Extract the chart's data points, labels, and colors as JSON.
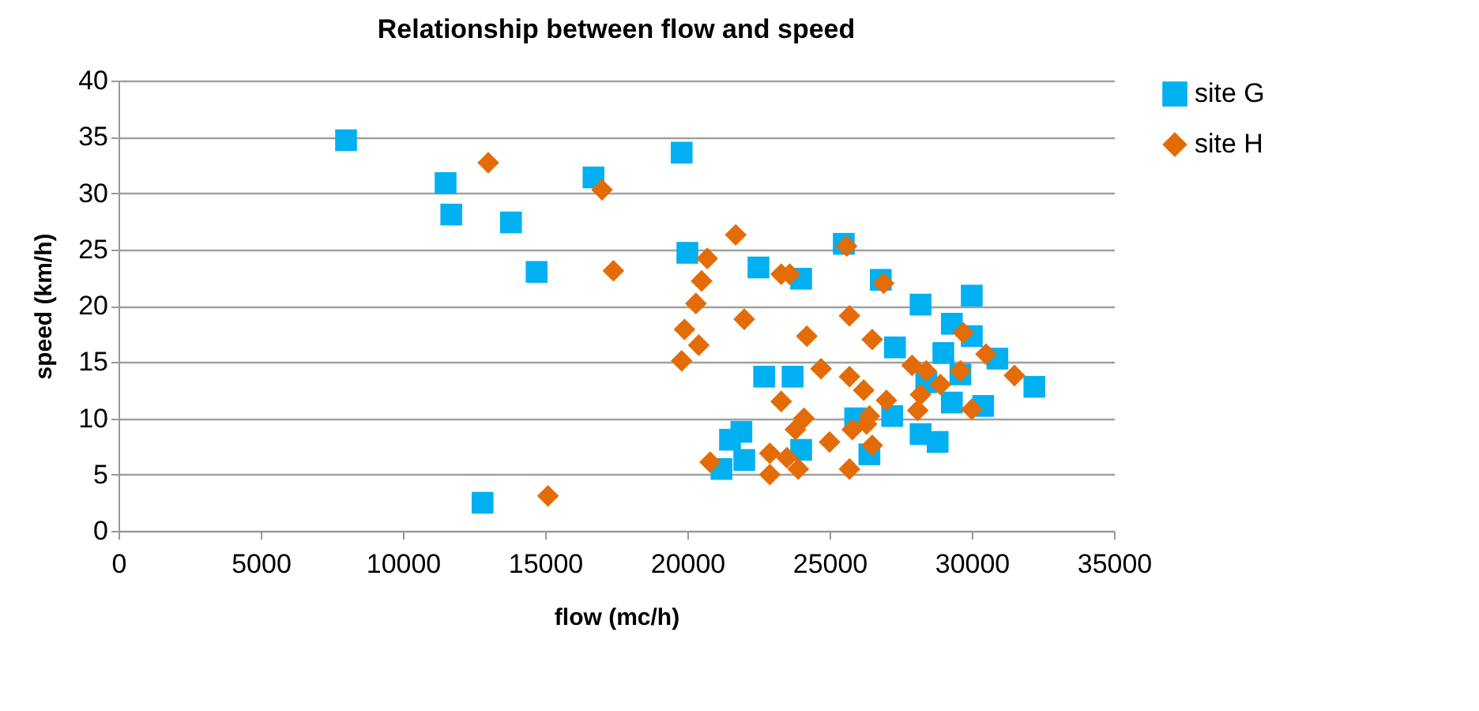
{
  "chart_data": {
    "type": "scatter",
    "title": "Relationship between flow and speed",
    "xlabel": "flow (mc/h)",
    "ylabel": "speed (km/h)",
    "xlim": [
      0,
      35000
    ],
    "xticks": [
      0,
      5000,
      10000,
      15000,
      20000,
      25000,
      30000,
      35000
    ],
    "ylim": [
      0,
      40
    ],
    "yticks": [
      0,
      5,
      10,
      15,
      20,
      25,
      30,
      35,
      40
    ],
    "grid": "y",
    "legend": "right",
    "series": [
      {
        "name": "site G",
        "color": "#00b0f0",
        "marker": "square",
        "x": [
          8000,
          11500,
          11700,
          13800,
          14700,
          16700,
          19800,
          20000,
          12800,
          21500,
          21200,
          22500,
          24000,
          25500,
          22700,
          23700,
          21900,
          22000,
          24000,
          25900,
          26400,
          26800,
          28200,
          30000,
          29300,
          30000,
          27300,
          29000,
          30900,
          28400,
          29600,
          32200,
          27200,
          29300,
          30400,
          28200,
          28800
        ],
        "values": [
          34.7,
          30.9,
          28.1,
          27.4,
          23.0,
          31.4,
          33.6,
          24.7,
          2.5,
          8.1,
          5.5,
          23.4,
          22.4,
          25.5,
          13.7,
          13.7,
          8.8,
          6.3,
          7.2,
          10.0,
          6.8,
          22.3,
          20.1,
          20.9,
          18.4,
          17.3,
          16.3,
          15.8,
          15.3,
          13.2,
          13.9,
          12.8,
          10.2,
          11.4,
          11.1,
          8.6,
          7.9
        ]
      },
      {
        "name": "site H",
        "color": "#e36c09",
        "marker": "diamond",
        "x": [
          13000,
          17000,
          17400,
          20700,
          20500,
          20300,
          19900,
          20400,
          19800,
          20800,
          15100,
          21700,
          22000,
          23300,
          23600,
          25600,
          25700,
          24200,
          26500,
          24700,
          25700,
          26200,
          23300,
          24100,
          23800,
          25800,
          26400,
          25000,
          22900,
          23500,
          23900,
          22900,
          25700,
          26900,
          29700,
          30500,
          31500,
          29600,
          27900,
          28400,
          28900,
          28200,
          28100,
          30000,
          27000,
          26300,
          26500
        ],
        "values": [
          32.7,
          30.3,
          23.1,
          24.2,
          22.2,
          20.2,
          17.9,
          16.5,
          15.1,
          6.1,
          3.1,
          26.3,
          18.8,
          22.8,
          22.8,
          25.3,
          19.1,
          17.3,
          17.0,
          14.4,
          13.7,
          12.5,
          11.5,
          10.0,
          9.0,
          9.0,
          10.2,
          7.9,
          6.9,
          6.5,
          5.5,
          5.0,
          5.5,
          22.0,
          17.6,
          15.7,
          13.8,
          14.2,
          14.7,
          14.2,
          13.0,
          12.1,
          10.7,
          10.8,
          11.6,
          9.5,
          7.6
        ]
      }
    ]
  }
}
